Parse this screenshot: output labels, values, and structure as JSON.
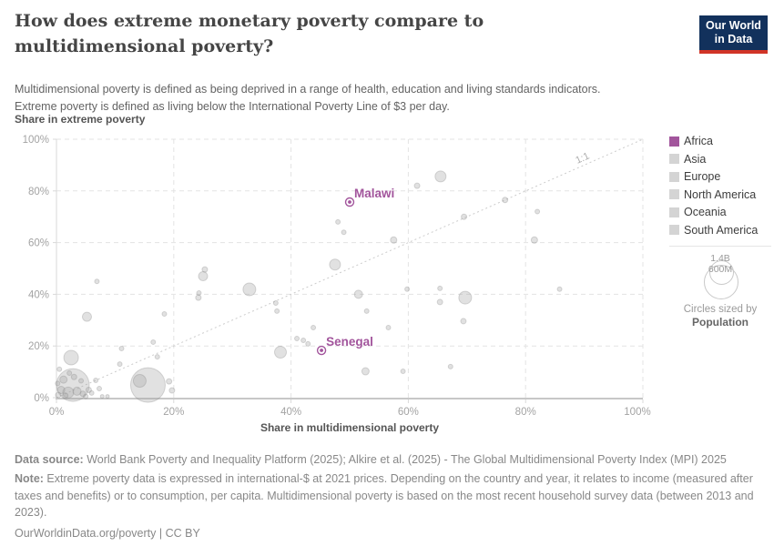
{
  "header": {
    "title": "How does extreme monetary poverty compare to multidimensional poverty?",
    "subtitle_lines": [
      "Multidimensional poverty is defined as being deprived in a range of health, education and living standards indicators.",
      "Extreme poverty is defined as living below the International Poverty Line of $3 per day."
    ],
    "logo": {
      "line1": "Our World",
      "line2": "in Data",
      "bg_color": "#12315c",
      "bar_color": "#d13427"
    }
  },
  "chart_data": {
    "type": "scatter",
    "title": "How does extreme monetary poverty compare to multidimensional poverty?",
    "xlabel": "Share in multidimensional poverty",
    "ylabel": "Share in extreme poverty",
    "xlim": [
      0,
      100
    ],
    "ylim": [
      0,
      100
    ],
    "x_ticks": [
      "0%",
      "20%",
      "40%",
      "60%",
      "80%",
      "100%"
    ],
    "y_ticks": [
      "0%",
      "20%",
      "40%",
      "60%",
      "80%",
      "100%"
    ],
    "grid": "dashed",
    "diagonal_label": "1:1",
    "accent_color": "#a2559c",
    "bubble_color": "#c9c9c9",
    "highlighted_points": [
      {
        "name": "Malawi",
        "x": 50,
        "y": 75.7,
        "continent": "Africa"
      },
      {
        "name": "Senegal",
        "x": 45.2,
        "y": 18.3,
        "continent": "Africa"
      }
    ],
    "points_xyr": [
      [
        15.6,
        4.9,
        19
      ],
      [
        2.8,
        4.9,
        18
      ],
      [
        14.2,
        6.5,
        7
      ],
      [
        2.5,
        15.5,
        8
      ],
      [
        5.2,
        31.3,
        5
      ],
      [
        69.7,
        38.7,
        7
      ],
      [
        32.9,
        41.9,
        7
      ],
      [
        38.2,
        17.6,
        6.5
      ],
      [
        65.5,
        85.6,
        6
      ],
      [
        47.5,
        51.5,
        6
      ],
      [
        25,
        47,
        5
      ],
      [
        51.5,
        40,
        4.5
      ],
      [
        52.7,
        10.2,
        4
      ],
      [
        57.5,
        61,
        3.5
      ],
      [
        81.5,
        61,
        3.5
      ],
      [
        61.5,
        82,
        3
      ],
      [
        76.5,
        76.5,
        3
      ],
      [
        69.5,
        70,
        3
      ],
      [
        25.3,
        49.6,
        3
      ],
      [
        65.4,
        37,
        3
      ],
      [
        69.4,
        29.6,
        3
      ],
      [
        24.2,
        38.7,
        3
      ],
      [
        19.2,
        6.3,
        3
      ],
      [
        19.7,
        2.8,
        3
      ],
      [
        82,
        72,
        2.5
      ],
      [
        48,
        68,
        2.5
      ],
      [
        49,
        64,
        2.5
      ],
      [
        6.9,
        45,
        2.5
      ],
      [
        59.8,
        42,
        2.5
      ],
      [
        65.4,
        42.3,
        2.5
      ],
      [
        85.8,
        42,
        2.5
      ],
      [
        52.9,
        33.5,
        2.5
      ],
      [
        56.6,
        27.1,
        2.5
      ],
      [
        43.8,
        27.1,
        2.5
      ],
      [
        37.4,
        36.6,
        2.5
      ],
      [
        37.6,
        33.5,
        2.5
      ],
      [
        24.3,
        40.5,
        2.5
      ],
      [
        41,
        22.9,
        2.5
      ],
      [
        42.1,
        22.2,
        2.5
      ],
      [
        42.9,
        20.8,
        2.5
      ],
      [
        59.1,
        10.2,
        2.5
      ],
      [
        67.2,
        12,
        2.5
      ],
      [
        18.4,
        32.4,
        2.5
      ],
      [
        16.5,
        21.5,
        2.5
      ],
      [
        11.1,
        19,
        2.5
      ],
      [
        17.2,
        15.8,
        2.5
      ],
      [
        10.8,
        13,
        2.5
      ],
      [
        6.7,
        6.7,
        2.5
      ],
      [
        7.3,
        3.5,
        2.5
      ],
      [
        0.5,
        11,
        2.5
      ],
      [
        2.2,
        9.5,
        2.5
      ],
      [
        1.2,
        7,
        4
      ],
      [
        2,
        2,
        6
      ],
      [
        0.8,
        3,
        4
      ],
      [
        3.5,
        2.5,
        4.5
      ],
      [
        0.3,
        1,
        3
      ],
      [
        1.5,
        0.8,
        3
      ],
      [
        4.5,
        1.5,
        3
      ],
      [
        5.5,
        3,
        3
      ],
      [
        0.2,
        5.5,
        2.5
      ],
      [
        3,
        8,
        3
      ],
      [
        4.2,
        6.5,
        2.5
      ],
      [
        7.8,
        0.5,
        2
      ],
      [
        8.7,
        0.5,
        2
      ],
      [
        5,
        0.5,
        2.5
      ],
      [
        6,
        1.8,
        2.5
      ]
    ]
  },
  "legend": {
    "items": [
      {
        "label": "Africa",
        "color": "#a2559c"
      },
      {
        "label": "Asia",
        "color": "#d4d4d4"
      },
      {
        "label": "Europe",
        "color": "#d4d4d4"
      },
      {
        "label": "North America",
        "color": "#d4d4d4"
      },
      {
        "label": "Oceania",
        "color": "#d4d4d4"
      },
      {
        "label": "South America",
        "color": "#d4d4d4"
      }
    ],
    "size_legend": {
      "max_label": "1.4B",
      "mid_label": "600M",
      "caption": "Circles sized by",
      "caption_bold": "Population"
    }
  },
  "footer": {
    "data_source_label": "Data source:",
    "data_source_text": " World Bank Poverty and Inequality Platform (2025); Alkire et al. (2025) - The Global Multidimensional Poverty Index (MPI) 2025",
    "note_label": "Note:",
    "note_text": " Extreme poverty data is expressed in international-$ at 2021 prices. Depending on the country and year, it relates to income (measured after taxes and benefits) or to consumption, per capita. Multidimensional poverty is based on the most recent household survey data (between 2013 and 2023).",
    "link": "OurWorldinData.org/poverty | CC BY"
  }
}
